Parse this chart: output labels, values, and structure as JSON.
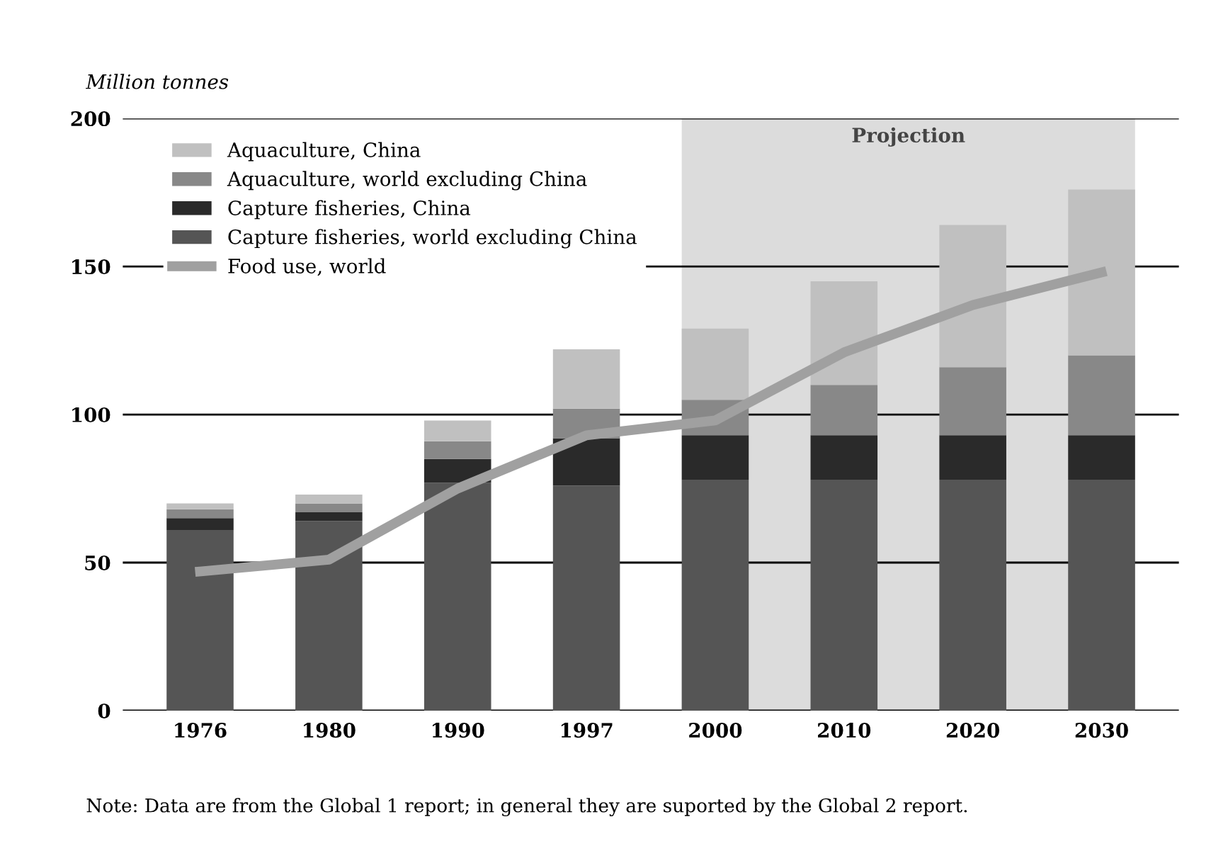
{
  "chart_data": {
    "type": "bar",
    "stacked": true,
    "ylabel": "Million tonnes",
    "categories": [
      "1976",
      "1980",
      "1990",
      "1997",
      "2000",
      "2010",
      "2020",
      "2030"
    ],
    "series": [
      {
        "name": "Capture fisheries, world excluding China",
        "color": "#555555",
        "values": [
          61,
          64,
          77,
          76,
          78,
          78,
          78,
          78
        ]
      },
      {
        "name": "Capture fisheries, China",
        "color": "#2a2a2a",
        "values": [
          4,
          3,
          8,
          16,
          15,
          15,
          15,
          15
        ]
      },
      {
        "name": "Aquaculture, world excluding China",
        "color": "#888888",
        "values": [
          3,
          3,
          6,
          10,
          12,
          17,
          23,
          27
        ]
      },
      {
        "name": "Aquaculture, China",
        "color": "#c0c0c0",
        "values": [
          2,
          3,
          7,
          20,
          24,
          35,
          48,
          56
        ]
      },
      {
        "name": "Food use, world",
        "type": "line",
        "color": "#a0a0a0",
        "values": [
          47,
          51,
          75,
          93,
          98,
          121,
          137,
          148
        ]
      }
    ],
    "ylim": [
      0,
      200
    ],
    "yticks": [
      0,
      50,
      100,
      150,
      200
    ],
    "grid": "y",
    "legend": "top left",
    "bands": [
      {
        "axis": "x",
        "from": "2000",
        "to": "2030",
        "label": "Projection",
        "color": "#dcdcdc"
      }
    ],
    "annotations": [
      "Note: Data are from the Global 1 report; in general they are suported by the Global 2 report."
    ]
  }
}
